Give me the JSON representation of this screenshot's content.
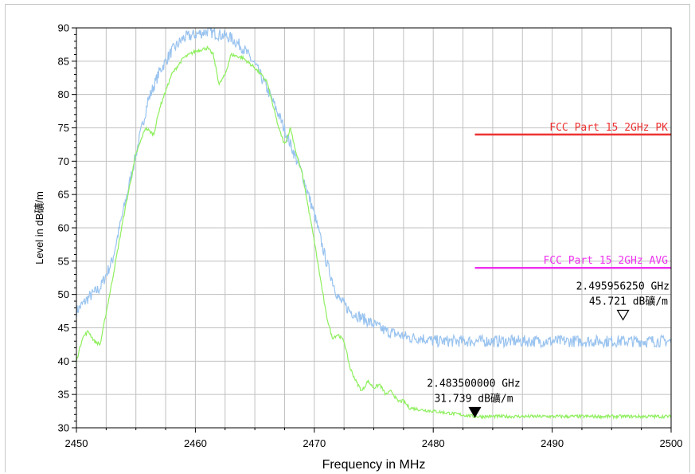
{
  "chart_data": {
    "type": "line",
    "xlabel": "Frequency in MHz",
    "ylabel": "Level in dB礦/m",
    "xlim": [
      2450,
      2500
    ],
    "ylim": [
      30,
      90
    ],
    "x_ticks": [
      "2450",
      "2460",
      "2470",
      "2480",
      "2490",
      "2500"
    ],
    "y_ticks": [
      "90",
      "85",
      "80",
      "75",
      "70",
      "65",
      "60",
      "55",
      "50",
      "45",
      "40",
      "35",
      "30"
    ],
    "grid": true,
    "series": [
      {
        "color": "#99c3ef",
        "x": [
          2450,
          2451,
          2452,
          2453,
          2454,
          2455,
          2456,
          2457,
          2458,
          2459,
          2460,
          2461,
          2462,
          2463,
          2464,
          2465,
          2466,
          2467,
          2468,
          2469,
          2470,
          2471,
          2472,
          2473,
          2474,
          2475,
          2476,
          2477,
          2478,
          2479,
          2480,
          2482,
          2485,
          2490,
          2495,
          2500
        ],
        "y": [
          47.5,
          49.5,
          51,
          55,
          63,
          71,
          79,
          83.5,
          86.5,
          88.5,
          89,
          89.5,
          89,
          88.5,
          87,
          84.5,
          81,
          77,
          72.5,
          68,
          62,
          55,
          49.5,
          47.5,
          46.5,
          45.5,
          44.5,
          44,
          43.5,
          43.5,
          43,
          43,
          43,
          43,
          43,
          43
        ]
      },
      {
        "color": "#8fef5f",
        "x": [
          2450,
          2450.5,
          2451,
          2451.5,
          2452,
          2453,
          2454,
          2455,
          2455.8,
          2456.5,
          2457,
          2458,
          2459,
          2460,
          2461,
          2461.5,
          2462,
          2462.5,
          2463,
          2464,
          2465,
          2466,
          2467,
          2467.5,
          2468,
          2468.5,
          2469,
          2470,
          2471,
          2471.5,
          2472,
          2472.5,
          2473,
          2473.5,
          2474,
          2474.5,
          2475,
          2475.5,
          2476,
          2476.5,
          2477,
          2477.5,
          2478,
          2479,
          2480,
          2483.5,
          2490,
          2500
        ],
        "y": [
          40,
          43.5,
          44.5,
          43,
          42.5,
          52,
          62,
          71,
          75,
          74,
          78,
          83,
          85.5,
          86.5,
          87,
          86,
          81.5,
          83,
          86,
          85.5,
          84,
          82,
          75,
          72.5,
          75,
          71,
          68,
          58,
          47,
          43.5,
          44,
          43,
          39,
          37,
          35.5,
          37,
          36,
          36.5,
          35,
          35.5,
          34,
          34,
          33,
          32.7,
          32.5,
          31.7,
          31.7,
          31.7
        ]
      }
    ],
    "limit_lines": [
      {
        "label": "FCC Part 15 2GHz PK",
        "y": 74,
        "x_start": 2483.5,
        "x_end": 2500,
        "color": "#ee3333"
      },
      {
        "label": "FCC Part 15 2GHz AVG",
        "y": 54,
        "x_start": 2483.5,
        "x_end": 2500,
        "color": "#ee33ee"
      }
    ],
    "markers": [
      {
        "freq_text": "2.495956250 GHz",
        "level_text": "45.721 dB礦/m",
        "x": 2495.956,
        "y": 45.721,
        "style": "hollow"
      },
      {
        "freq_text": "2.483500000 GHz",
        "level_text": "31.739 dB礦/m",
        "x": 2483.5,
        "y": 31.739,
        "style": "filled"
      }
    ]
  }
}
